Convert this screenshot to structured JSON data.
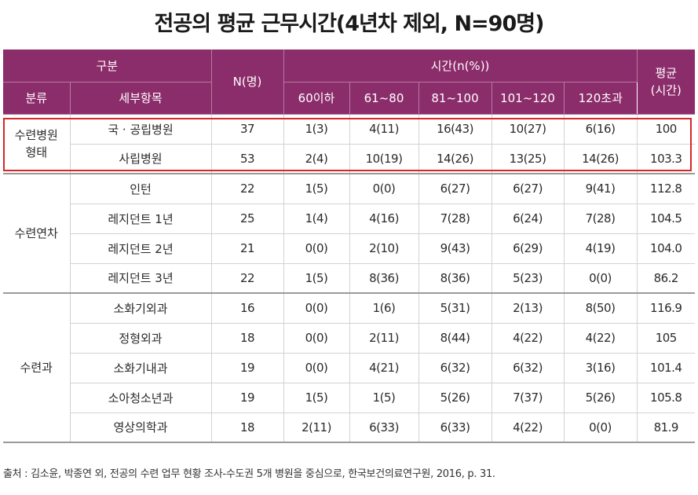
{
  "title": "전공의 평균 근무시간(4년차 제외, N=90명)",
  "header": {
    "gubun": "구분",
    "bunryu": "분류",
    "sebu": "세부항목",
    "n": "N(명)",
    "time_group": "시간(n(%))",
    "bins": [
      "60이하",
      "61~80",
      "81~100",
      "101~120",
      "120초과"
    ],
    "avg_line1": "평균",
    "avg_line2": "(시간)"
  },
  "colors": {
    "header_bg": "#8c2d6b",
    "highlight_border": "#d62828"
  },
  "groups": [
    {
      "category": "수련병원\n형태",
      "rows": [
        {
          "item": "국 · 공립병원",
          "n": "37",
          "b": [
            "1(3)",
            "4(11)",
            "16(43)",
            "10(27)",
            "6(16)"
          ],
          "avg": "100"
        },
        {
          "item": "사립병원",
          "n": "53",
          "b": [
            "2(4)",
            "10(19)",
            "14(26)",
            "13(25)",
            "14(26)"
          ],
          "avg": "103.3"
        }
      ]
    },
    {
      "category": "수련연차",
      "rows": [
        {
          "item": "인턴",
          "n": "22",
          "b": [
            "1(5)",
            "0(0)",
            "6(27)",
            "6(27)",
            "9(41)"
          ],
          "avg": "112.8"
        },
        {
          "item": "레지던트 1년",
          "n": "25",
          "b": [
            "1(4)",
            "4(16)",
            "7(28)",
            "6(24)",
            "7(28)"
          ],
          "avg": "104.5"
        },
        {
          "item": "레지던트 2년",
          "n": "21",
          "b": [
            "0(0)",
            "2(10)",
            "9(43)",
            "6(29)",
            "4(19)"
          ],
          "avg": "104.0"
        },
        {
          "item": "레지던트 3년",
          "n": "22",
          "b": [
            "1(5)",
            "8(36)",
            "8(36)",
            "5(23)",
            "0(0)"
          ],
          "avg": "86.2"
        }
      ]
    },
    {
      "category": "수련과",
      "rows": [
        {
          "item": "소화기외과",
          "n": "16",
          "b": [
            "0(0)",
            "1(6)",
            "5(31)",
            "2(13)",
            "8(50)"
          ],
          "avg": "116.9"
        },
        {
          "item": "정형외과",
          "n": "18",
          "b": [
            "0(0)",
            "2(11)",
            "8(44)",
            "4(22)",
            "4(22)"
          ],
          "avg": "105"
        },
        {
          "item": "소화기내과",
          "n": "19",
          "b": [
            "0(0)",
            "4(21)",
            "6(32)",
            "6(32)",
            "3(16)"
          ],
          "avg": "101.4"
        },
        {
          "item": "소아청소년과",
          "n": "19",
          "b": [
            "1(5)",
            "1(5)",
            "5(26)",
            "7(37)",
            "5(26)"
          ],
          "avg": "105.8"
        },
        {
          "item": "영상의학과",
          "n": "18",
          "b": [
            "2(11)",
            "6(33)",
            "6(33)",
            "4(22)",
            "0(0)"
          ],
          "avg": "81.9"
        }
      ]
    }
  ],
  "source": "출처 : 김소윤, 박종연 외, 전공의 수련 업무 현황 조사-수도권 5개 병원을 중심으로, 한국보건의료연구원, 2016, p. 31."
}
